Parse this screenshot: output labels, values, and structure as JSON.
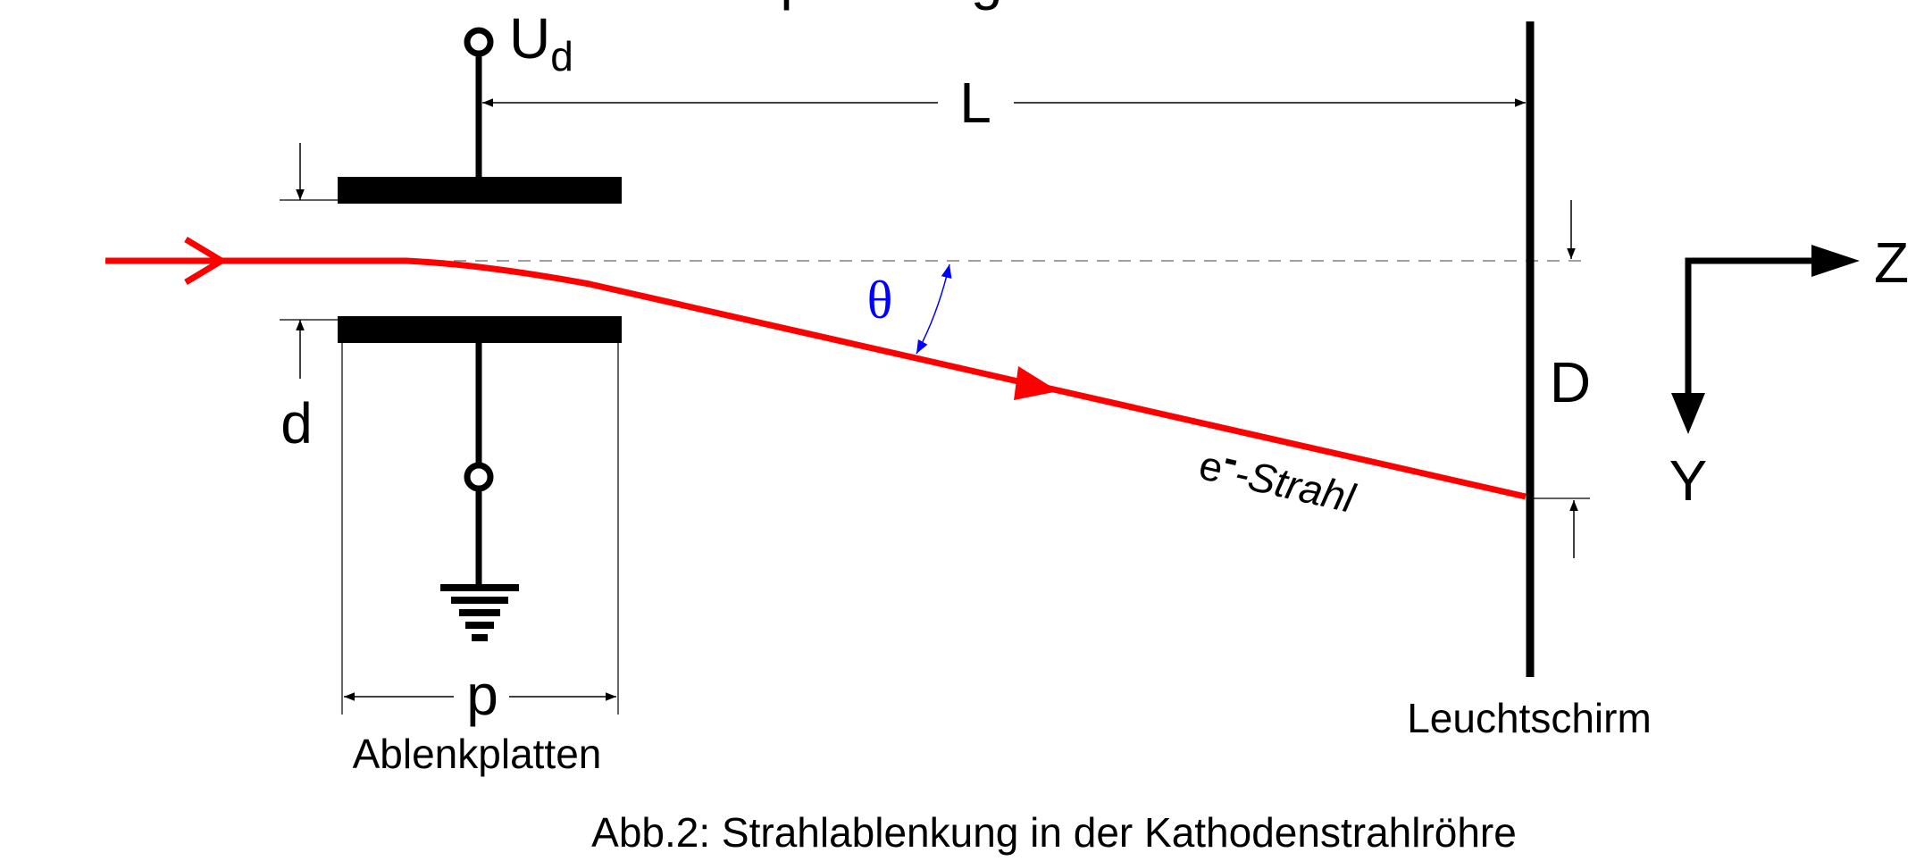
{
  "title_fragment": "...pannung U",
  "title_fragment_sub": "d",
  "labels": {
    "ud_main": "U",
    "ud_sub": "d",
    "L": "L",
    "d": "d",
    "p": "p",
    "D": "D",
    "theta": "θ",
    "beam_prefix": "e",
    "beam_minus": "-",
    "beam_suffix": "-Strahl",
    "plates": "Ablenkplatten",
    "screen": "Leuchtschirm",
    "Z": "Z",
    "Y": "Y"
  },
  "caption": "Abb.2:   Strahlablenkung in der Kathodenstrahlröhre",
  "colors": {
    "beam": "#ff0000",
    "angle": "#0000ff",
    "ink": "#000000",
    "dashed": "#808080"
  }
}
